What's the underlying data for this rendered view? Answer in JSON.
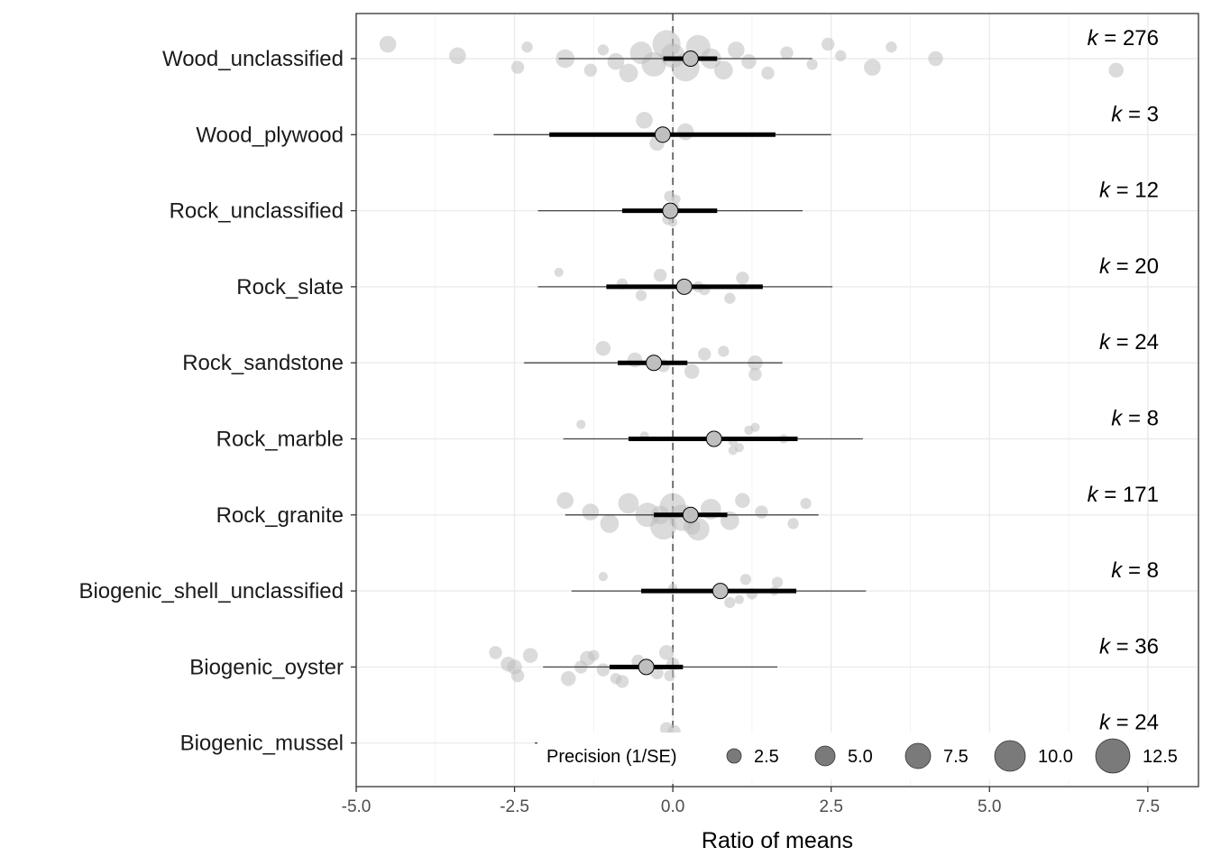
{
  "chart_data": {
    "type": "scatter",
    "title": "",
    "xlabel": "Ratio of means",
    "ylabel": "",
    "xlim": [
      -5.0,
      8.3
    ],
    "x_ticks": [
      -5.0,
      -2.5,
      0.0,
      2.5,
      5.0,
      7.5
    ],
    "x_tick_labels": [
      "-5.0",
      "-2.5",
      "0.0",
      "2.5",
      "5.0",
      "7.5"
    ],
    "reference_line_x": 0,
    "grid": true,
    "legend": {
      "title": "Precision (1/SE)",
      "position": "bottom-right",
      "values": [
        2.5,
        5.0,
        7.5,
        10.0,
        12.5
      ],
      "labels": [
        "2.5",
        "5.0",
        "7.5",
        "10.0",
        "12.5"
      ]
    },
    "categories": [
      {
        "name": "Wood_unclassified",
        "k_label": "k",
        "k_value": "276",
        "estimate": 0.28,
        "ci": [
          -0.15,
          0.7
        ],
        "pi": [
          -1.8,
          2.2
        ],
        "points": [
          [
            -4.5,
            6
          ],
          [
            -3.4,
            6
          ],
          [
            -2.45,
            4
          ],
          [
            -2.3,
            3
          ],
          [
            -1.7,
            7
          ],
          [
            -1.3,
            4
          ],
          [
            -1.1,
            3
          ],
          [
            -0.9,
            6
          ],
          [
            -0.7,
            7
          ],
          [
            -0.5,
            9
          ],
          [
            -0.3,
            10
          ],
          [
            -0.1,
            12
          ],
          [
            0.0,
            10
          ],
          [
            0.2,
            12
          ],
          [
            0.4,
            10
          ],
          [
            0.6,
            8
          ],
          [
            0.8,
            7
          ],
          [
            1.0,
            6
          ],
          [
            1.2,
            5
          ],
          [
            1.5,
            4
          ],
          [
            1.8,
            4
          ],
          [
            2.2,
            3
          ],
          [
            2.45,
            4
          ],
          [
            2.65,
            3
          ],
          [
            3.15,
            6
          ],
          [
            3.45,
            3
          ],
          [
            4.15,
            5
          ],
          [
            7.0,
            5
          ]
        ]
      },
      {
        "name": "Wood_plywood",
        "k_label": "k",
        "k_value": "3",
        "estimate": -0.16,
        "ci": [
          -1.95,
          1.62
        ],
        "pi": [
          -2.83,
          2.5
        ],
        "points": [
          [
            -0.45,
            6
          ],
          [
            0.2,
            6
          ],
          [
            -0.25,
            5
          ]
        ]
      },
      {
        "name": "Rock_unclassified",
        "k_label": "k",
        "k_value": "12",
        "estimate": -0.04,
        "ci": [
          -0.8,
          0.7
        ],
        "pi": [
          -2.13,
          2.05
        ],
        "points": [
          [
            -0.05,
            3
          ],
          [
            0.02,
            3
          ],
          [
            -0.08,
            3
          ],
          [
            0.05,
            2
          ],
          [
            -0.02,
            3
          ],
          [
            0.0,
            2
          ]
        ]
      },
      {
        "name": "Rock_slate",
        "k_label": "k",
        "k_value": "20",
        "estimate": 0.18,
        "ci": [
          -1.05,
          1.42
        ],
        "pi": [
          -2.13,
          2.52
        ],
        "points": [
          [
            -1.8,
            2
          ],
          [
            -0.8,
            3
          ],
          [
            -0.5,
            3
          ],
          [
            -0.2,
            4
          ],
          [
            0.4,
            3
          ],
          [
            0.9,
            3
          ],
          [
            1.1,
            4
          ],
          [
            0.5,
            3
          ]
        ]
      },
      {
        "name": "Rock_sandstone",
        "k_label": "k",
        "k_value": "24",
        "estimate": -0.3,
        "ci": [
          -0.87,
          0.23
        ],
        "pi": [
          -2.35,
          1.73
        ],
        "points": [
          [
            -1.1,
            5
          ],
          [
            -0.6,
            5
          ],
          [
            0.3,
            5
          ],
          [
            0.8,
            3
          ],
          [
            1.3,
            5
          ],
          [
            1.3,
            4
          ],
          [
            0.5,
            4
          ],
          [
            -0.15,
            4
          ]
        ]
      },
      {
        "name": "Rock_marble",
        "k_label": "k",
        "k_value": "8",
        "estimate": 0.65,
        "ci": [
          -0.7,
          1.97
        ],
        "pi": [
          -1.73,
          3.0
        ],
        "points": [
          [
            -1.45,
            2
          ],
          [
            -0.45,
            2
          ],
          [
            1.05,
            2
          ],
          [
            1.3,
            2
          ],
          [
            1.75,
            2
          ],
          [
            0.95,
            2
          ],
          [
            1.2,
            2
          ],
          [
            0.95,
            2
          ]
        ]
      },
      {
        "name": "Rock_granite",
        "k_label": "k",
        "k_value": "171",
        "estimate": 0.28,
        "ci": [
          -0.3,
          0.86
        ],
        "pi": [
          -1.7,
          2.3
        ],
        "points": [
          [
            -1.7,
            6
          ],
          [
            -1.3,
            6
          ],
          [
            -1.0,
            7
          ],
          [
            -0.7,
            8
          ],
          [
            -0.4,
            10
          ],
          [
            -0.15,
            11
          ],
          [
            0.0,
            11
          ],
          [
            0.15,
            11
          ],
          [
            0.4,
            9
          ],
          [
            0.6,
            8
          ],
          [
            0.9,
            7
          ],
          [
            1.1,
            5
          ],
          [
            1.4,
            4
          ],
          [
            1.9,
            3
          ],
          [
            2.1,
            3
          ],
          [
            -0.2,
            7
          ],
          [
            0.3,
            6
          ]
        ]
      },
      {
        "name": "Biogenic_shell_unclassified",
        "k_label": "k",
        "k_value": "8",
        "estimate": 0.75,
        "ci": [
          -0.5,
          1.95
        ],
        "pi": [
          -1.6,
          3.05
        ],
        "points": [
          [
            -1.1,
            2
          ],
          [
            0.0,
            2
          ],
          [
            1.05,
            2
          ],
          [
            1.15,
            3
          ],
          [
            1.6,
            2
          ],
          [
            0.9,
            3
          ],
          [
            1.65,
            3
          ],
          [
            1.25,
            3
          ]
        ]
      },
      {
        "name": "Biogenic_oyster",
        "k_label": "k",
        "k_value": "36",
        "estimate": -0.42,
        "ci": [
          -1.0,
          0.16
        ],
        "pi": [
          -2.05,
          1.65
        ],
        "points": [
          [
            -2.8,
            4
          ],
          [
            -2.6,
            5
          ],
          [
            -2.45,
            4
          ],
          [
            -2.25,
            5
          ],
          [
            -2.5,
            5
          ],
          [
            -1.65,
            5
          ],
          [
            -1.35,
            5
          ],
          [
            -1.1,
            4
          ],
          [
            -0.8,
            4
          ],
          [
            -0.55,
            4
          ],
          [
            -0.25,
            4
          ],
          [
            -0.1,
            5
          ],
          [
            0.0,
            4
          ],
          [
            -0.05,
            3
          ],
          [
            -1.25,
            3
          ],
          [
            -1.45,
            4
          ],
          [
            -0.9,
            3
          ]
        ]
      },
      {
        "name": "Biogenic_mussel",
        "k_label": "k",
        "k_value": "24",
        "estimate": -0.08,
        "ci": [
          -0.72,
          0.56
        ],
        "pi": [
          -2.18,
          2.0
        ],
        "points": [
          [
            -0.1,
            4
          ],
          [
            0.05,
            4
          ],
          [
            -0.08,
            3
          ],
          [
            0.02,
            4
          ],
          [
            -0.05,
            3
          ],
          [
            0.1,
            3
          ]
        ]
      }
    ]
  }
}
